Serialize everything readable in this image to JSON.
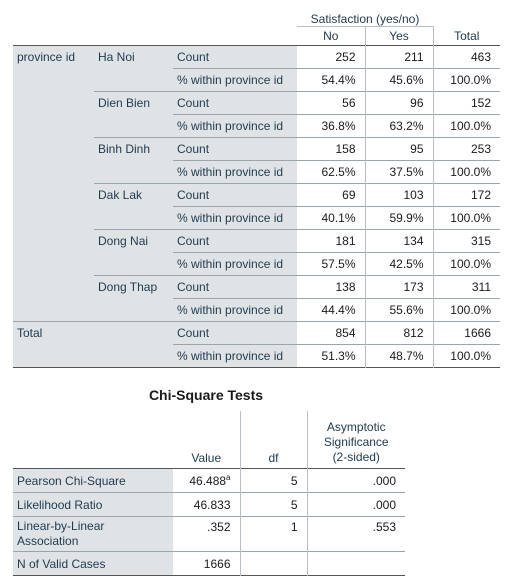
{
  "crosstab": {
    "variable_header": "Satisfaction (yes/no)",
    "col_no": "No",
    "col_yes": "Yes",
    "col_total": "Total",
    "row_var_label": "province id",
    "rows": [
      {
        "province": "Ha Noi",
        "count_label": "Count",
        "count_no": "252",
        "count_yes": "211",
        "count_total": "463",
        "pct_label": "% within province id",
        "pct_no": "54.4%",
        "pct_yes": "45.6%",
        "pct_total": "100.0%"
      },
      {
        "province": "Dien Bien",
        "count_label": "Count",
        "count_no": "56",
        "count_yes": "96",
        "count_total": "152",
        "pct_label": "% within province id",
        "pct_no": "36.8%",
        "pct_yes": "63.2%",
        "pct_total": "100.0%"
      },
      {
        "province": "Binh Dinh",
        "count_label": "Count",
        "count_no": "158",
        "count_yes": "95",
        "count_total": "253",
        "pct_label": "% within province id",
        "pct_no": "62.5%",
        "pct_yes": "37.5%",
        "pct_total": "100.0%"
      },
      {
        "province": "Dak Lak",
        "count_label": "Count",
        "count_no": "69",
        "count_yes": "103",
        "count_total": "172",
        "pct_label": "% within province id",
        "pct_no": "40.1%",
        "pct_yes": "59.9%",
        "pct_total": "100.0%"
      },
      {
        "province": "Dong Nai",
        "count_label": "Count",
        "count_no": "181",
        "count_yes": "134",
        "count_total": "315",
        "pct_label": "% within province id",
        "pct_no": "57.5%",
        "pct_yes": "42.5%",
        "pct_total": "100.0%"
      },
      {
        "province": "Dong Thap",
        "count_label": "Count",
        "count_no": "138",
        "count_yes": "173",
        "count_total": "311",
        "pct_label": "% within province id",
        "pct_no": "44.4%",
        "pct_yes": "55.6%",
        "pct_total": "100.0%"
      }
    ],
    "total": {
      "label": "Total",
      "count_label": "Count",
      "count_no": "854",
      "count_yes": "812",
      "count_total": "1666",
      "pct_label": "% within province id",
      "pct_no": "51.3%",
      "pct_yes": "48.7%",
      "pct_total": "100.0%"
    }
  },
  "chi_square": {
    "title": "Chi-Square Tests",
    "col_value": "Value",
    "col_df": "df",
    "col_sig_line1": "Asymptotic",
    "col_sig_line2": "Significance",
    "col_sig_line3": "(2-sided)",
    "rows": [
      {
        "label": "Pearson Chi-Square",
        "value": "46.488",
        "footnote": "a",
        "df": "5",
        "sig": ".000"
      },
      {
        "label": "Likelihood Ratio",
        "value": "46.833",
        "df": "5",
        "sig": ".000"
      },
      {
        "label_line1": "Linear-by-Linear",
        "label_line2": "Association",
        "value": ".352",
        "df": "1",
        "sig": ".553"
      },
      {
        "label": "N of Valid Cases",
        "value": "1666"
      }
    ]
  }
}
